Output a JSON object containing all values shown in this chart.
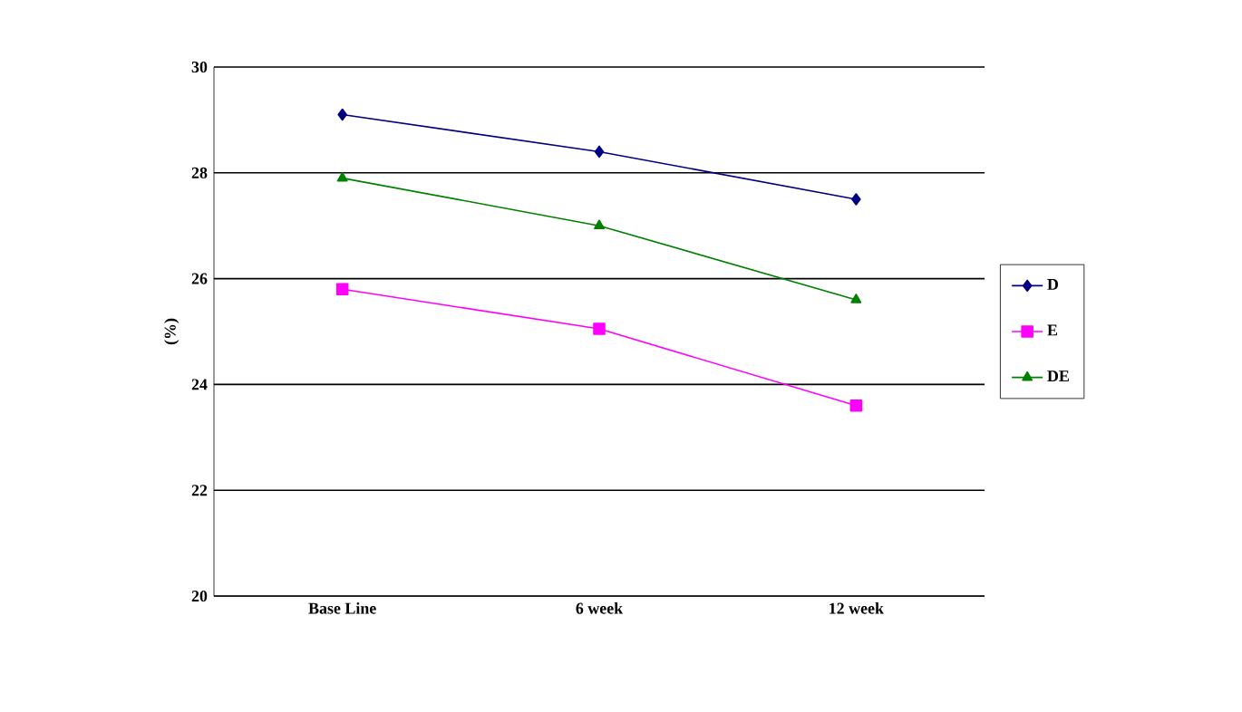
{
  "chart_data": {
    "type": "line",
    "ylabel": "(%)",
    "categories": [
      "Base Line",
      "6 week",
      "12 week"
    ],
    "series": [
      {
        "name": "D",
        "color": "#000080",
        "marker": "diamond",
        "values": [
          29.1,
          28.4,
          27.5
        ]
      },
      {
        "name": "E",
        "color": "#ff00ff",
        "marker": "square",
        "values": [
          25.8,
          25.05,
          23.6
        ]
      },
      {
        "name": "DE",
        "color": "#008000",
        "marker": "triangle",
        "values": [
          27.9,
          27.0,
          25.6
        ]
      }
    ],
    "ylim": [
      20,
      30
    ],
    "yticks": [
      20,
      22,
      24,
      26,
      28,
      30
    ],
    "grid": "y",
    "legend": "right",
    "line_style": "solid"
  }
}
